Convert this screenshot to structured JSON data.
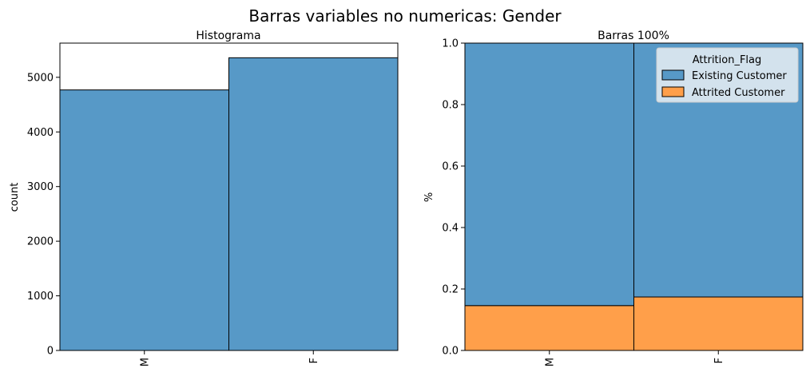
{
  "figure": {
    "suptitle": "Barras variables no numericas: Gender"
  },
  "colors": {
    "existing": "#5799c7",
    "attrited": "#ff9f4a",
    "edge": "#000000"
  },
  "chart_data": [
    {
      "type": "bar",
      "title": "Histograma",
      "xlabel": "",
      "ylabel": "count",
      "categories": [
        "M",
        "F"
      ],
      "values": [
        4769,
        5358
      ],
      "ylim": [
        0,
        5626
      ],
      "yticks": [
        0,
        1000,
        2000,
        3000,
        4000,
        5000
      ],
      "grid": false
    },
    {
      "type": "bar",
      "stacked": true,
      "title": "Barras 100%",
      "xlabel": "",
      "ylabel": "%",
      "categories": [
        "M",
        "F"
      ],
      "ylim": [
        0,
        1.0
      ],
      "yticks": [
        0.0,
        0.2,
        0.4,
        0.6,
        0.8,
        1.0
      ],
      "ytick_labels": [
        "0.0",
        "0.2",
        "0.4",
        "0.6",
        "0.8",
        "1.0"
      ],
      "series": [
        {
          "name": "Attrited Customer",
          "values": [
            0.146,
            0.174
          ]
        },
        {
          "name": "Existing Customer",
          "values": [
            0.854,
            0.826
          ]
        }
      ],
      "legend": {
        "title": "Attrition_Flag",
        "entries": [
          "Existing Customer",
          "Attrited Customer"
        ],
        "placement": "top-right"
      },
      "grid": false
    }
  ]
}
